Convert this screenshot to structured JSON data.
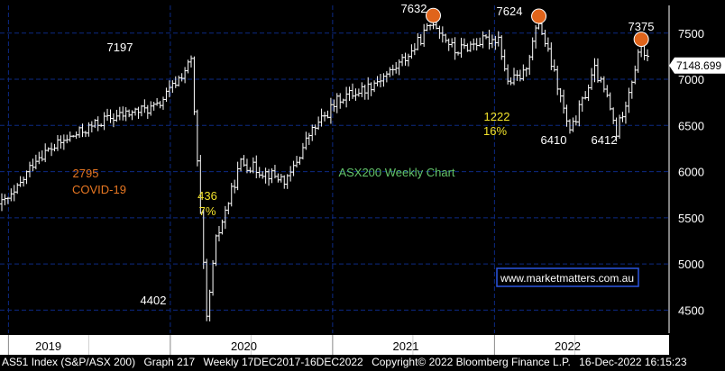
{
  "chart_data": {
    "type": "line",
    "style": "weekly OHLC bars",
    "y_ticks": [
      4500,
      5000,
      5500,
      6000,
      6500,
      7000,
      7500
    ],
    "ylim": [
      4250,
      7800
    ],
    "last_price_label": "7148.699",
    "x_axis_years": [
      "2019",
      "2020",
      "2021",
      "2022"
    ],
    "subtitle": "ASX200 Weekly Chart",
    "watermark": "www.marketmatters.com.au",
    "annotations": [
      {
        "text": "7197",
        "color": "#ffffff"
      },
      {
        "text": "7632",
        "color": "#ffffff"
      },
      {
        "text": "7624",
        "color": "#ffffff"
      },
      {
        "text": "7375",
        "color": "#ffffff"
      },
      {
        "text": "2795",
        "color": "#e87722"
      },
      {
        "text": "COVID-19",
        "color": "#e87722"
      },
      {
        "text": "436",
        "color": "#f2e22b"
      },
      {
        "text": "7%",
        "color": "#f2e22b"
      },
      {
        "text": "1222",
        "color": "#f2e22b"
      },
      {
        "text": "16%",
        "color": "#f2e22b"
      },
      {
        "text": "6410",
        "color": "#ffffff"
      },
      {
        "text": "6412",
        "color": "#ffffff"
      },
      {
        "text": "4402",
        "color": "#ffffff"
      }
    ],
    "peak_markers": [
      {
        "label": "7632",
        "value": 7632
      },
      {
        "label": "7624",
        "value": 7624
      },
      {
        "label": "7375",
        "value": 7375
      }
    ],
    "series": [
      {
        "key_points": [
          {
            "date": "2018-12-17",
            "value": 5650
          },
          {
            "date": "2019-01-14",
            "value": 5750
          },
          {
            "date": "2019-03-04",
            "value": 6150
          },
          {
            "date": "2019-05-13",
            "value": 6350
          },
          {
            "date": "2019-08-05",
            "value": 6560
          },
          {
            "date": "2019-10-14",
            "value": 6650
          },
          {
            "date": "2019-12-02",
            "value": 6700
          },
          {
            "date": "2020-01-27",
            "value": 7050
          },
          {
            "date": "2020-02-17",
            "value": 7197
          },
          {
            "date": "2020-03-23",
            "value": 4402
          },
          {
            "date": "2020-04-13",
            "value": 5250
          },
          {
            "date": "2020-06-08",
            "value": 6100
          },
          {
            "date": "2020-07-27",
            "value": 6000
          },
          {
            "date": "2020-09-21",
            "value": 5900
          },
          {
            "date": "2020-11-09",
            "value": 6400
          },
          {
            "date": "2021-01-18",
            "value": 6800
          },
          {
            "date": "2021-03-15",
            "value": 6900
          },
          {
            "date": "2021-05-17",
            "value": 7100
          },
          {
            "date": "2021-06-28",
            "value": 7300
          },
          {
            "date": "2021-08-16",
            "value": 7632
          },
          {
            "date": "2021-10-04",
            "value": 7300
          },
          {
            "date": "2021-11-22",
            "value": 7400
          },
          {
            "date": "2022-01-10",
            "value": 7450
          },
          {
            "date": "2022-01-31",
            "value": 6960
          },
          {
            "date": "2022-03-07",
            "value": 7050
          },
          {
            "date": "2022-04-11",
            "value": 7624
          },
          {
            "date": "2022-05-16",
            "value": 7050
          },
          {
            "date": "2022-06-20",
            "value": 6410
          },
          {
            "date": "2022-08-15",
            "value": 7100
          },
          {
            "date": "2022-09-12",
            "value": 6800
          },
          {
            "date": "2022-10-03",
            "value": 6412
          },
          {
            "date": "2022-11-07",
            "value": 7000
          },
          {
            "date": "2022-11-28",
            "value": 7375
          },
          {
            "date": "2022-12-16",
            "value": 7149
          }
        ]
      }
    ]
  },
  "colors": {
    "background": "#000000",
    "bars": "#ffffff",
    "grid": "#0c2a84",
    "label_box": "#ffffff",
    "peak_circle": "#e0641b",
    "subtitle": "#63c46a",
    "watermark_border": "#2b56e0",
    "year_axis_bg": "#ffffff"
  },
  "footer": {
    "security": "AS51 Index (S&P/ASX 200)",
    "graph": "Graph 217",
    "period": "Weekly 17DEC2017-16DEC2022",
    "copyright": "Copyright© 2022 Bloomberg Finance L.P.",
    "timestamp": "16-Dec-2022 16:15:23"
  }
}
